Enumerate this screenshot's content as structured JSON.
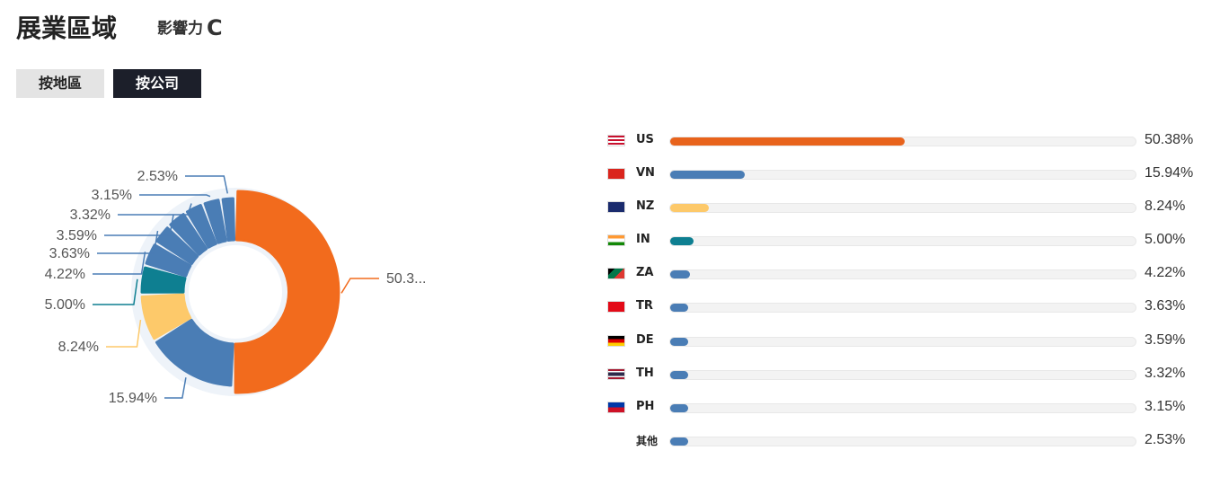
{
  "header": {
    "title": "展業區域",
    "influence_label": "影響力",
    "influence_grade": "C"
  },
  "tabs": [
    {
      "label": "按地區",
      "active": false
    },
    {
      "label": "按公司",
      "active": true
    }
  ],
  "chart_data": {
    "type": "pie",
    "variant": "donut",
    "categories": [
      "US",
      "VN",
      "NZ",
      "IN",
      "ZA",
      "TR",
      "DE",
      "TH",
      "PH",
      "其他"
    ],
    "values": [
      50.38,
      15.94,
      8.24,
      5.0,
      4.22,
      3.63,
      3.59,
      3.32,
      3.15,
      2.53
    ],
    "labels": [
      "50.3...",
      "15.94%",
      "8.24%",
      "5.00%",
      "4.22%",
      "3.63%",
      "3.59%",
      "3.32%",
      "3.15%",
      "2.53%"
    ],
    "colors": [
      "#f26b1d",
      "#4a7db5",
      "#fdc96a",
      "#0e7f91",
      "#4a7db5",
      "#4a7db5",
      "#4a7db5",
      "#4a7db5",
      "#4a7db5",
      "#4a7db5"
    ]
  },
  "bars": [
    {
      "code": "US",
      "pct": "50.38%",
      "value": 50.38,
      "color": "#e8631c",
      "flag": "us"
    },
    {
      "code": "VN",
      "pct": "15.94%",
      "value": 15.94,
      "color": "#4a7db5",
      "flag": "vn"
    },
    {
      "code": "NZ",
      "pct": "8.24%",
      "value": 8.24,
      "color": "#fdc96a",
      "flag": "nz"
    },
    {
      "code": "IN",
      "pct": "5.00%",
      "value": 5.0,
      "color": "#0e7f91",
      "flag": "in"
    },
    {
      "code": "ZA",
      "pct": "4.22%",
      "value": 4.22,
      "color": "#4a7db5",
      "flag": "za"
    },
    {
      "code": "TR",
      "pct": "3.63%",
      "value": 3.63,
      "color": "#4a7db5",
      "flag": "tr"
    },
    {
      "code": "DE",
      "pct": "3.59%",
      "value": 3.59,
      "color": "#4a7db5",
      "flag": "de"
    },
    {
      "code": "TH",
      "pct": "3.32%",
      "value": 3.32,
      "color": "#4a7db5",
      "flag": "th"
    },
    {
      "code": "PH",
      "pct": "3.15%",
      "value": 3.15,
      "color": "#4a7db5",
      "flag": "ph"
    },
    {
      "code": "其他",
      "pct": "2.53%",
      "value": 2.53,
      "color": "#4a7db5",
      "flag": ""
    }
  ]
}
